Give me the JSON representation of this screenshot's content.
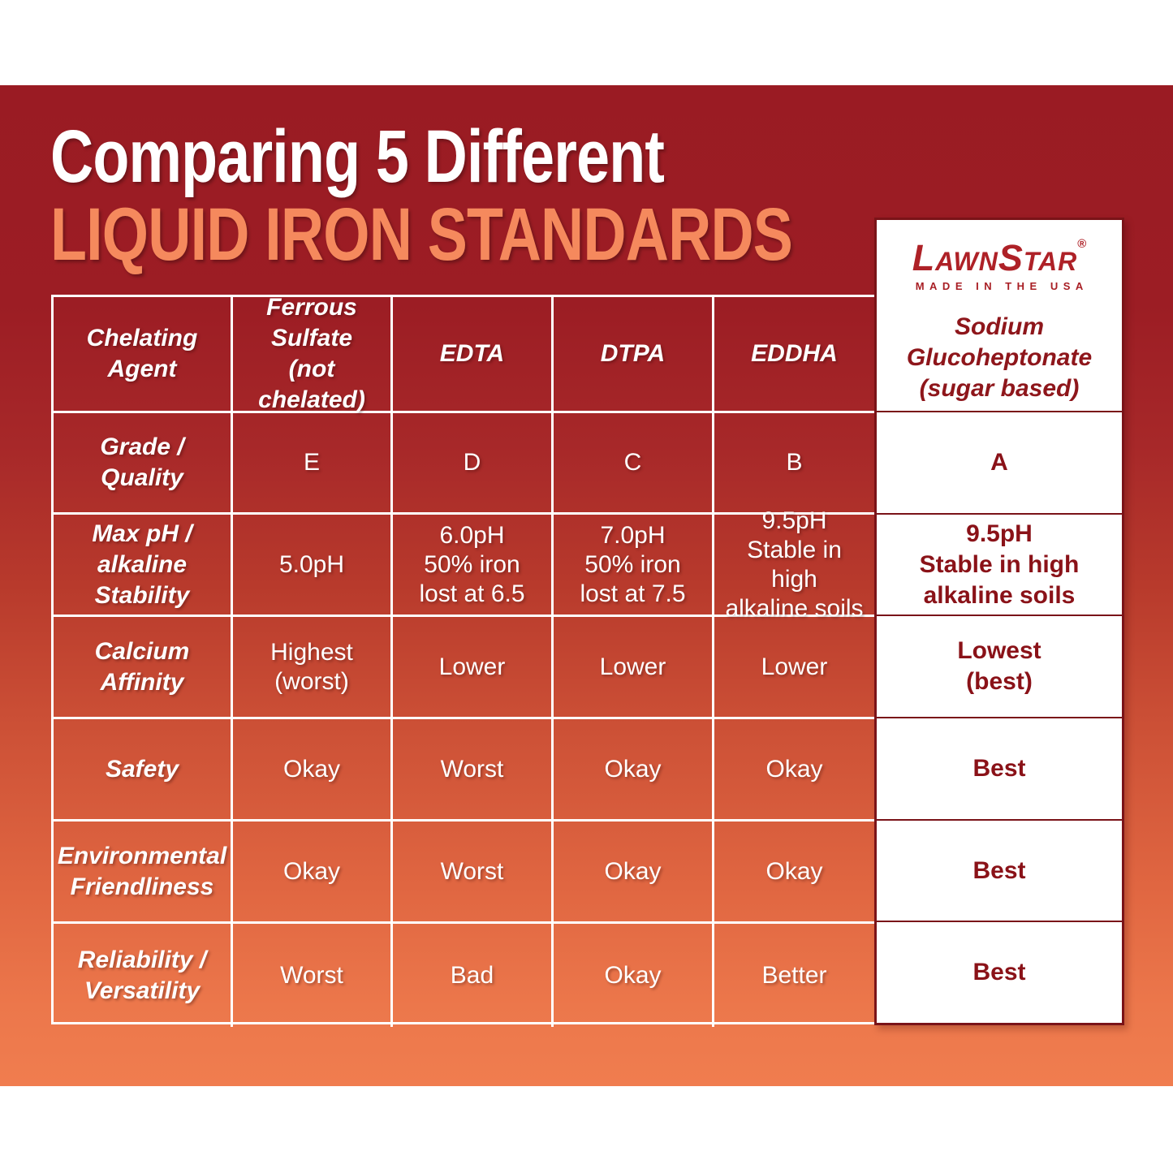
{
  "header": {
    "title_line1": "Comparing 5 Different",
    "title_line2": "LIQUID IRON STANDARDS"
  },
  "logo": {
    "brand": "LawnStar",
    "registered": "®",
    "tagline": "MADE IN THE USA"
  },
  "table": {
    "columns": {
      "label_header": "Chelating\nAgent",
      "standard_headers": [
        "Ferrous\nSulfate\n(not chelated)",
        "EDTA",
        "DTPA",
        "EDDHA"
      ],
      "highlight_header": "Sodium\nGlucoheptonate\n(sugar based)"
    },
    "rows": [
      {
        "label": "Grade /\nQuality",
        "values": [
          "E",
          "D",
          "C",
          "B"
        ],
        "highlight": "A"
      },
      {
        "label": "Max pH /\nalkaline\nStability",
        "values": [
          "5.0pH",
          "6.0pH\n50% iron\nlost at 6.5",
          "7.0pH\n50% iron\nlost at 7.5",
          "9.5pH\nStable in high\nalkaline soils"
        ],
        "highlight": "9.5pH\nStable in high\nalkaline soils"
      },
      {
        "label": "Calcium\nAffinity",
        "values": [
          "Highest\n(worst)",
          "Lower",
          "Lower",
          "Lower"
        ],
        "highlight": "Lowest\n(best)"
      },
      {
        "label": "Safety",
        "values": [
          "Okay",
          "Worst",
          "Okay",
          "Okay"
        ],
        "highlight": "Best"
      },
      {
        "label": "Environmental\nFriendliness",
        "values": [
          "Okay",
          "Worst",
          "Okay",
          "Okay"
        ],
        "highlight": "Best"
      },
      {
        "label": "Reliability /\nVersatility",
        "values": [
          "Worst",
          "Bad",
          "Okay",
          "Better"
        ],
        "highlight": "Best"
      }
    ]
  },
  "chart_data": {
    "type": "table",
    "title": "Comparing 5 Different LIQUID IRON STANDARDS",
    "columns": [
      "Chelating Agent",
      "Ferrous Sulfate (not chelated)",
      "EDTA",
      "DTPA",
      "EDDHA",
      "Sodium Glucoheptonate (sugar based)"
    ],
    "rows": [
      [
        "Grade / Quality",
        "E",
        "D",
        "C",
        "B",
        "A"
      ],
      [
        "Max pH / alkaline Stability",
        "5.0pH",
        "6.0pH 50% iron lost at 6.5",
        "7.0pH 50% iron lost at 7.5",
        "9.5pH Stable in high alkaline soils",
        "9.5pH Stable in high alkaline soils"
      ],
      [
        "Calcium Affinity",
        "Highest (worst)",
        "Lower",
        "Lower",
        "Lower",
        "Lowest (best)"
      ],
      [
        "Safety",
        "Okay",
        "Worst",
        "Okay",
        "Okay",
        "Best"
      ],
      [
        "Environmental Friendliness",
        "Okay",
        "Worst",
        "Okay",
        "Okay",
        "Best"
      ],
      [
        "Reliability / Versatility",
        "Worst",
        "Bad",
        "Okay",
        "Better",
        "Best"
      ]
    ],
    "highlight_column": "Sodium Glucoheptonate (sugar based)"
  },
  "colors": {
    "background_top": "#9A1B23",
    "background_bottom": "#F07D4F",
    "title_text": "#FFFFFF",
    "title_accent": "#F5895D",
    "table_rule": "#FFFFFF",
    "highlight_background": "#FFFFFF",
    "highlight_border": "#7A1318",
    "highlight_text": "#8A1218",
    "logo_red": "#AE2127"
  }
}
